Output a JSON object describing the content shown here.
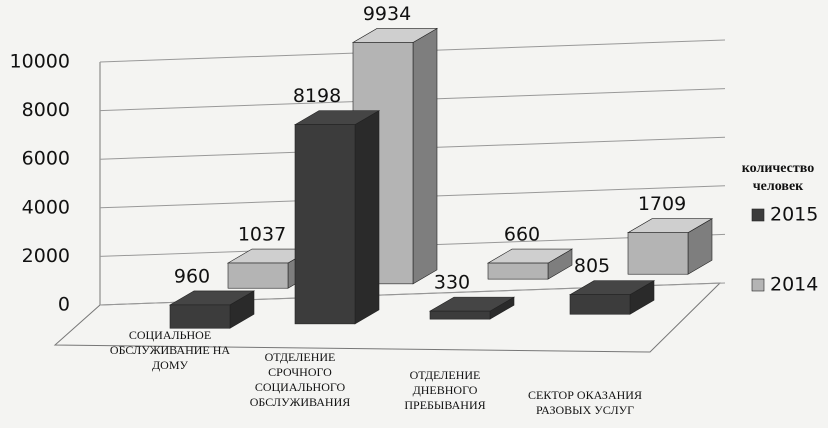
{
  "chart_data": {
    "type": "bar3d",
    "categories": [
      "СОЦИАЛЬНОЕ ОБСЛУЖИВАНИЕ НА ДОМУ",
      "ОТДЕЛЕНИЕ СРОЧНОГО СОЦИАЛЬНОГО ОБСЛУЖИВАНИЯ",
      "ОТДЕЛЕНИЕ ДНЕВНОГО ПРЕБЫВАНИЯ",
      "СЕКТОР ОКАЗАНИЯ РАЗОВЫХ УСЛУГ"
    ],
    "series": [
      {
        "name": "2015",
        "color": "#3c3c3c",
        "values": [
          960,
          8198,
          330,
          805
        ]
      },
      {
        "name": "2014",
        "color": "#b4b4b4",
        "values": [
          1037,
          9934,
          660,
          1709
        ]
      }
    ],
    "legend_title": "количество человек",
    "ylim": [
      0,
      10000
    ],
    "yticks": [
      0,
      2000,
      4000,
      6000,
      8000,
      10000
    ],
    "grid": true
  }
}
